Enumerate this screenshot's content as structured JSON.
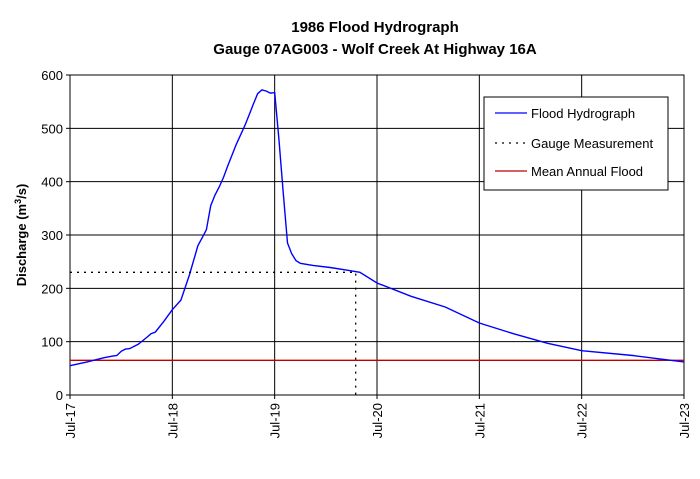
{
  "chart_data": {
    "type": "line",
    "title": "1986 Flood Hydrograph",
    "subtitle": "Gauge 07AG003 - Wolf Creek At Highway 16A",
    "ylabel_main": "Discharge (m",
    "ylabel_sup": "3",
    "ylabel_end": "/s)",
    "xlabel": "",
    "x_ticks": [
      "Jul-17",
      "Jul-18",
      "Jul-19",
      "Jul-20",
      "Jul-21",
      "Jul-22",
      "Jul-23"
    ],
    "xlim": [
      "Jul-17",
      "Jul-23"
    ],
    "ylim": [
      0,
      600
    ],
    "y_ticks": [
      0,
      100,
      200,
      300,
      400,
      500,
      600
    ],
    "grid": true,
    "legend_position": "top-right",
    "series": [
      {
        "name": "Flood Hydrograph",
        "color": "#0000ff",
        "style": "solid",
        "points": [
          [
            "Jul-17 00:00",
            55
          ],
          [
            "Jul-17 04:00",
            62
          ],
          [
            "Jul-17 08:00",
            70
          ],
          [
            "Jul-17 10:00",
            73
          ],
          [
            "Jul-17 11:00",
            74
          ],
          [
            "Jul-17 12:00",
            82
          ],
          [
            "Jul-17 13:00",
            86
          ],
          [
            "Jul-17 14:00",
            87
          ],
          [
            "Jul-17 16:00",
            95
          ],
          [
            "Jul-17 18:00",
            108
          ],
          [
            "Jul-17 19:00",
            115
          ],
          [
            "Jul-17 20:00",
            118
          ],
          [
            "Jul-17 22:00",
            138
          ],
          [
            "Jul-18 00:00",
            160
          ],
          [
            "Jul-18 02:00",
            178
          ],
          [
            "Jul-18 04:00",
            225
          ],
          [
            "Jul-18 06:00",
            280
          ],
          [
            "Jul-18 07:00",
            295
          ],
          [
            "Jul-18 08:00",
            310
          ],
          [
            "Jul-18 09:00",
            355
          ],
          [
            "Jul-18 10:00",
            375
          ],
          [
            "Jul-18 11:00",
            390
          ],
          [
            "Jul-18 12:00",
            408
          ],
          [
            "Jul-18 13:00",
            430
          ],
          [
            "Jul-18 15:00",
            470
          ],
          [
            "Jul-18 17:00",
            505
          ],
          [
            "Jul-18 18:00",
            525
          ],
          [
            "Jul-18 19:00",
            545
          ],
          [
            "Jul-18 20:00",
            565
          ],
          [
            "Jul-18 21:00",
            572
          ],
          [
            "Jul-18 22:00",
            570
          ],
          [
            "Jul-18 23:00",
            566
          ],
          [
            "Jul-19 00:00",
            567
          ],
          [
            "Jul-19 01:00",
            480
          ],
          [
            "Jul-19 02:00",
            380
          ],
          [
            "Jul-19 03:00",
            285
          ],
          [
            "Jul-19 04:00",
            265
          ],
          [
            "Jul-19 05:00",
            252
          ],
          [
            "Jul-19 06:00",
            247
          ],
          [
            "Jul-19 09:00",
            243
          ],
          [
            "Jul-19 13:00",
            239
          ],
          [
            "Jul-19 17:00",
            234
          ],
          [
            "Jul-19 20:00",
            230
          ],
          [
            "Jul-20 00:00",
            210
          ],
          [
            "Jul-20 08:00",
            185
          ],
          [
            "Jul-20 16:00",
            165
          ],
          [
            "Jul-21 00:00",
            135
          ],
          [
            "Jul-21 08:00",
            115
          ],
          [
            "Jul-21 16:00",
            97
          ],
          [
            "Jul-22 00:00",
            83
          ],
          [
            "Jul-22 12:00",
            74
          ],
          [
            "Jul-22 20:00",
            66
          ],
          [
            "Jul-23 00:00",
            62
          ]
        ]
      },
      {
        "name": "Gauge Measurement",
        "color": "#000000",
        "style": "dotted",
        "point": [
          "Jul-19 19:00",
          230
        ]
      },
      {
        "name": "Mean Annual Flood",
        "color": "#c00000",
        "style": "solid",
        "value": 65
      }
    ]
  }
}
